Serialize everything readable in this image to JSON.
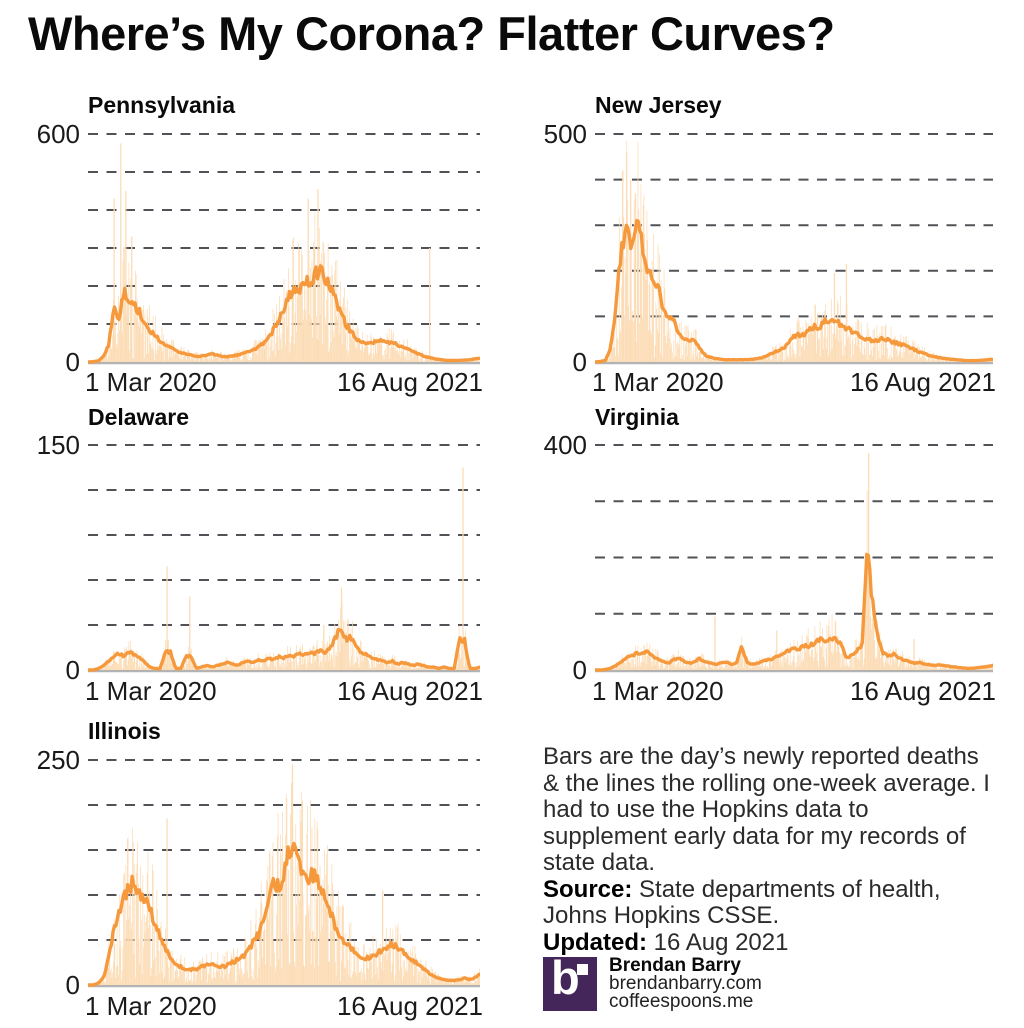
{
  "title": "Where’s My Corona? Flatter Curves?",
  "colors": {
    "bar": "#FCDCB5",
    "line": "#F6993D",
    "grid": "#515257",
    "baseline": "#B3B3B3",
    "logo_purple": "#44265A"
  },
  "note": {
    "body": "Bars are the day’s newly reported deaths & the lines the rolling one-week average. I had to use the Hopkins data to supplement early data for my records of state data.",
    "source_label": "Source:",
    "source_text": " State departments of health, Johns Hopkins CSSE.",
    "updated_label": "Updated:",
    "updated_text": " 16 Aug 2021"
  },
  "footer": {
    "logo_letter": "b",
    "name": "Brendan Barry",
    "site1": "brendanbarry.com",
    "site2": "coffeespoons.me"
  },
  "chart_data": [
    {
      "type": "bar",
      "name": "Pennsylvania",
      "bar_series_label": "daily newly reported deaths",
      "line_series_label": "rolling one-week average",
      "x_start": "1 Mar 2020",
      "x_end": "16 Aug 2021",
      "ylim": [
        0,
        600
      ],
      "grid_step": 100,
      "ymax_label": "600",
      "zero_label": "0",
      "seed": 11,
      "weekly_avg": [
        0,
        1,
        3,
        15,
        45,
        140,
        120,
        190,
        160,
        150,
        130,
        100,
        85,
        70,
        55,
        45,
        38,
        30,
        25,
        20,
        18,
        16,
        15,
        18,
        22,
        18,
        15,
        14,
        16,
        18,
        22,
        26,
        32,
        40,
        50,
        65,
        85,
        110,
        140,
        170,
        195,
        185,
        215,
        205,
        230,
        240,
        225,
        200,
        165,
        130,
        100,
        80,
        62,
        52,
        48,
        50,
        55,
        58,
        55,
        50,
        45,
        40,
        35,
        28,
        22,
        16,
        12,
        9,
        7,
        5,
        4,
        4,
        4,
        5,
        6,
        8,
        10
      ],
      "spike_bars": [
        {
          "t": 0.065,
          "v": 430
        },
        {
          "t": 0.082,
          "v": 575
        },
        {
          "t": 0.095,
          "v": 450
        },
        {
          "t": 0.11,
          "v": 330
        },
        {
          "t": 0.56,
          "v": 430
        },
        {
          "t": 0.585,
          "v": 455
        },
        {
          "t": 0.87,
          "v": 300
        }
      ]
    },
    {
      "type": "bar",
      "name": "New Jersey",
      "bar_series_label": "daily newly reported deaths",
      "line_series_label": "rolling one-week average",
      "x_start": "1 Mar 2020",
      "x_end": "16 Aug 2021",
      "ylim": [
        0,
        500
      ],
      "grid_step": 100,
      "ymax_label": "500",
      "zero_label": "0",
      "seed": 23,
      "weekly_avg": [
        0,
        1,
        4,
        30,
        120,
        250,
        295,
        250,
        300,
        260,
        200,
        175,
        170,
        120,
        95,
        90,
        60,
        50,
        48,
        50,
        30,
        15,
        10,
        8,
        6,
        5,
        5,
        5,
        5,
        5,
        6,
        8,
        10,
        14,
        20,
        25,
        30,
        42,
        55,
        60,
        62,
        70,
        80,
        75,
        95,
        85,
        90,
        82,
        75,
        68,
        60,
        55,
        50,
        46,
        48,
        52,
        48,
        44,
        40,
        36,
        32,
        27,
        22,
        18,
        14,
        11,
        9,
        7,
        6,
        5,
        4,
        3,
        3,
        3,
        4,
        5,
        6
      ],
      "spike_bars": [
        {
          "t": 0.068,
          "v": 420
        },
        {
          "t": 0.078,
          "v": 460
        },
        {
          "t": 0.088,
          "v": 400
        },
        {
          "t": 0.1,
          "v": 370
        },
        {
          "t": 0.6,
          "v": 195
        },
        {
          "t": 0.63,
          "v": 215
        }
      ]
    },
    {
      "type": "bar",
      "name": "Delaware",
      "bar_series_label": "daily newly reported deaths",
      "line_series_label": "rolling one-week average",
      "x_start": "1 Mar 2020",
      "x_end": "16 Aug 2021",
      "ylim": [
        0,
        150
      ],
      "grid_step": 30,
      "ymax_label": "150",
      "zero_label": "0",
      "seed": 37,
      "weekly_avg": [
        0,
        0,
        1,
        3,
        6,
        9,
        11,
        9,
        12,
        10,
        8,
        5,
        2,
        1,
        1,
        12,
        12,
        1,
        1,
        9,
        9,
        1,
        2,
        3,
        2,
        3,
        4,
        5,
        4,
        3,
        5,
        6,
        5,
        7,
        6,
        8,
        7,
        9,
        8,
        10,
        9,
        11,
        10,
        12,
        11,
        13,
        12,
        15,
        22,
        28,
        20,
        22,
        15,
        12,
        10,
        8,
        7,
        6,
        5,
        6,
        4,
        5,
        4,
        3,
        4,
        3,
        2,
        2,
        1,
        2,
        1,
        1,
        20,
        20,
        1,
        1,
        2
      ],
      "spike_bars": [
        {
          "t": 0.2,
          "v": 69
        },
        {
          "t": 0.258,
          "v": 49
        },
        {
          "t": 0.6,
          "v": 30
        },
        {
          "t": 0.645,
          "v": 55
        },
        {
          "t": 0.955,
          "v": 135
        }
      ]
    },
    {
      "type": "bar",
      "name": "Virginia",
      "bar_series_label": "daily newly reported deaths",
      "line_series_label": "rolling one-week average",
      "x_start": "1 Mar 2020",
      "x_end": "16 Aug 2021",
      "ylim": [
        0,
        400
      ],
      "grid_step": 100,
      "ymax_label": "400",
      "zero_label": "0",
      "seed": 53,
      "weekly_avg": [
        0,
        0,
        1,
        3,
        8,
        15,
        22,
        25,
        30,
        28,
        35,
        25,
        20,
        15,
        12,
        18,
        22,
        15,
        12,
        15,
        20,
        15,
        12,
        10,
        12,
        15,
        10,
        12,
        40,
        15,
        10,
        12,
        15,
        18,
        20,
        25,
        30,
        35,
        40,
        38,
        45,
        42,
        50,
        55,
        52,
        58,
        55,
        45,
        20,
        25,
        35,
        45,
        215,
        120,
        55,
        30,
        25,
        28,
        22,
        18,
        15,
        12,
        14,
        11,
        9,
        8,
        9,
        7,
        6,
        5,
        4,
        3,
        3,
        4,
        5,
        6,
        8
      ],
      "spike_bars": [
        {
          "t": 0.3,
          "v": 95
        },
        {
          "t": 0.455,
          "v": 70
        },
        {
          "t": 0.678,
          "v": 210
        },
        {
          "t": 0.686,
          "v": 385
        },
        {
          "t": 0.8,
          "v": 55
        }
      ]
    },
    {
      "type": "bar",
      "name": "Illinois",
      "bar_series_label": "daily newly reported deaths",
      "line_series_label": "rolling one-week average",
      "x_start": "1 Mar 2020",
      "x_end": "16 Aug 2021",
      "ylim": [
        0,
        250
      ],
      "grid_step": 50,
      "ymax_label": "250",
      "zero_label": "0",
      "seed": 71,
      "weekly_avg": [
        0,
        0,
        2,
        8,
        30,
        60,
        80,
        95,
        110,
        115,
        100,
        95,
        85,
        70,
        55,
        40,
        30,
        22,
        20,
        18,
        17,
        18,
        20,
        22,
        25,
        22,
        20,
        22,
        25,
        28,
        32,
        38,
        48,
        55,
        75,
        95,
        115,
        110,
        125,
        150,
        155,
        140,
        115,
        122,
        118,
        112,
        95,
        80,
        65,
        55,
        45,
        40,
        35,
        32,
        30,
        32,
        35,
        38,
        42,
        45,
        42,
        38,
        32,
        28,
        22,
        18,
        14,
        10,
        8,
        6,
        5,
        5,
        6,
        8,
        6,
        8,
        12
      ],
      "spike_bars": [
        {
          "t": 0.2,
          "v": 185
        },
        {
          "t": 0.52,
          "v": 245
        },
        {
          "t": 0.545,
          "v": 205
        },
        {
          "t": 0.75,
          "v": 105
        }
      ]
    }
  ]
}
